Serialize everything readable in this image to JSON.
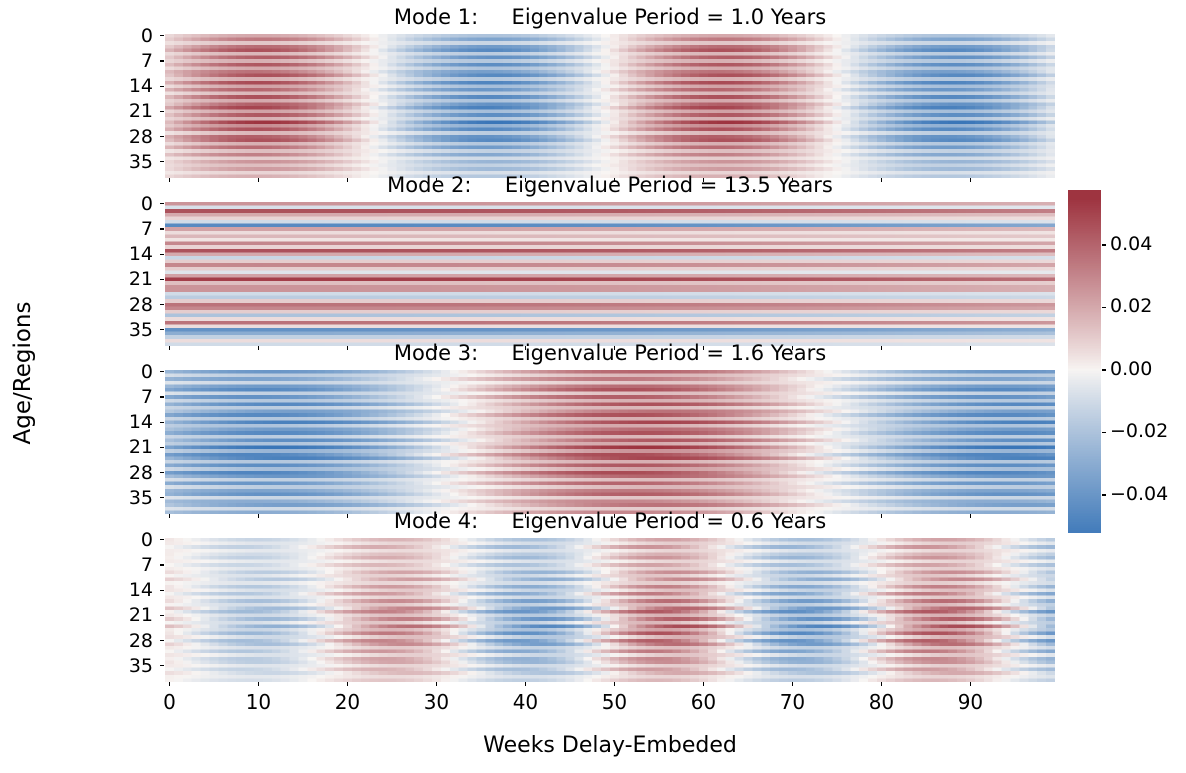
{
  "figure": {
    "xlabel": "Weeks Delay-Embeded",
    "ylabel": "Age/Regions",
    "x_ticks": [
      0,
      10,
      20,
      30,
      40,
      50,
      60,
      70,
      80,
      90
    ],
    "y_ticks": [
      0,
      7,
      14,
      21,
      28,
      35
    ],
    "colorbar": {
      "tick_labels": [
        "0.04",
        "0.02",
        "0.00",
        "−0.02",
        "−0.04"
      ],
      "tick_values": [
        0.04,
        0.02,
        0.0,
        -0.02,
        -0.04
      ],
      "vmax": 0.0576,
      "vmin": -0.0522,
      "color_positive_max": "#9e3440",
      "color_zero": "#f8f5f3",
      "color_negative_max": "#3a76b8"
    }
  },
  "chart_data": [
    {
      "type": "heatmap",
      "title": "Mode 1:     Eigenvalue Period = 1.0 Years",
      "mode": 1,
      "eigenvalue_period_years": 1.0,
      "x_range_weeks": [
        0,
        99
      ],
      "n_rows": 40,
      "color_norm": 0.055,
      "wave": {
        "period_weeks": 52,
        "peak_week": 10,
        "row_phase_jitter_weeks": 0.8,
        "ramp_start_amp": 1.0,
        "ramp_full_week": 0
      },
      "row_amplitudes": [
        0.02,
        0.034,
        0.012,
        0.038,
        0.046,
        0.016,
        0.042,
        0.018,
        0.044,
        0.02,
        0.036,
        0.046,
        0.018,
        0.048,
        0.022,
        0.04,
        0.016,
        0.046,
        0.02,
        0.042,
        0.05,
        0.022,
        0.044,
        0.018,
        0.055,
        0.028,
        0.046,
        0.016,
        0.042,
        0.046,
        0.018,
        0.038,
        0.014,
        0.032,
        0.01,
        0.026,
        0.014,
        0.024,
        0.008,
        0.018
      ]
    },
    {
      "type": "heatmap",
      "title": "Mode 2:     Eigenvalue Period = 13.5 Years",
      "mode": 2,
      "eigenvalue_period_years": 13.5,
      "x_range_weeks": [
        0,
        99
      ],
      "n_rows": 40,
      "color_norm": 0.055,
      "wave": {
        "period_weeks": 702,
        "peak_week": 10,
        "row_phase_jitter_weeks": 0,
        "ramp_start_amp": 1.0,
        "ramp_full_week": 0
      },
      "row_amplitudes": [
        0.026,
        -0.008,
        0.046,
        0.02,
        0.008,
        -0.01,
        -0.046,
        0.022,
        0.006,
        0.016,
        0.004,
        0.03,
        0.008,
        0.046,
        0.02,
        -0.012,
        0.01,
        0.03,
        0.01,
        -0.006,
        0.022,
        0.052,
        0.014,
        0.026,
        0.026,
        -0.01,
        -0.016,
        0.01,
        0.036,
        0.03,
        0.01,
        -0.02,
        0.006,
        0.036,
        0.006,
        -0.042,
        -0.03,
        -0.014,
        0.006,
        -0.01
      ]
    },
    {
      "type": "heatmap",
      "title": "Mode 3:     Eigenvalue Period = 1.6 Years",
      "mode": 3,
      "eigenvalue_period_years": 1.6,
      "x_range_weeks": [
        0,
        99
      ],
      "n_rows": 40,
      "color_norm": 0.055,
      "wave": {
        "period_weeks": 83,
        "peak_week": 53,
        "row_phase_jitter_weeks": 2.5,
        "ramp_start_amp": 1.0,
        "ramp_full_week": 0
      },
      "row_amplitudes": [
        0.04,
        0.016,
        0.034,
        0.012,
        0.038,
        0.046,
        0.014,
        0.042,
        0.018,
        0.046,
        0.016,
        0.036,
        0.046,
        0.018,
        0.05,
        0.02,
        0.038,
        0.046,
        0.016,
        0.044,
        0.02,
        0.055,
        0.026,
        0.048,
        0.05,
        0.018,
        0.044,
        0.022,
        0.048,
        0.04,
        0.014,
        0.04,
        0.016,
        0.034,
        0.042,
        0.012,
        0.03,
        0.036,
        0.01,
        0.03
      ]
    },
    {
      "type": "heatmap",
      "title": "Mode 4:     Eigenvalue Period = 0.6 Years",
      "mode": 4,
      "eigenvalue_period_years": 0.6,
      "x_range_weeks": [
        0,
        99
      ],
      "n_rows": 40,
      "color_norm": 0.055,
      "wave": {
        "period_weeks": 31,
        "peak_week": 25,
        "row_phase_jitter_weeks": 2.0,
        "ramp_start_amp": 0.45,
        "ramp_full_week": 45
      },
      "row_amplitudes": [
        0.022,
        0.01,
        0.026,
        0.008,
        0.018,
        0.026,
        0.008,
        0.022,
        0.01,
        0.028,
        0.012,
        0.03,
        0.01,
        0.032,
        0.014,
        0.034,
        0.012,
        0.038,
        0.016,
        0.04,
        0.044,
        0.018,
        0.042,
        0.016,
        0.048,
        0.022,
        0.046,
        0.018,
        0.042,
        0.038,
        0.014,
        0.034,
        0.012,
        0.03,
        0.028,
        0.01,
        0.024,
        0.02,
        0.008,
        0.016
      ]
    }
  ]
}
